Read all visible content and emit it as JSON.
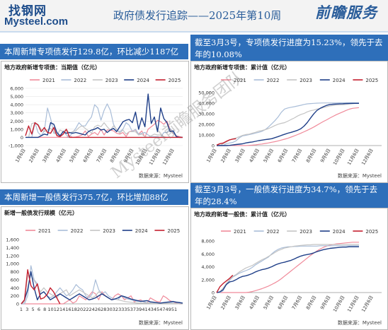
{
  "header": {
    "logo_cn": "找钢网",
    "logo_en": "Mysteel.com",
    "title": "政府债发行追踪——2025年第10周",
    "brand": "前瞻服务"
  },
  "bars": {
    "top_left": "本周新增专项债发行129.8亿，环比减少1187亿",
    "top_right": "截至3月3号，专项债发行进度为15.23%，领先于去年的10.08%",
    "bottom_left": "本周新增一般债发行375.7亿，环比增加88亿",
    "bottom_right": "截至3月3号，一般债发行进度为34.7%，领先于去年的28.4%"
  },
  "watermark": "Mysteel前瞻服务团队",
  "source": "数据来源：Mysteel",
  "colors": {
    "2021": "#f08a9a",
    "2022": "#a9bdd8",
    "2023": "#c4c4c4",
    "2024": "#1f3f88",
    "2025": "#c4202f",
    "bar": "#2e6fba"
  },
  "chart_data": [
    {
      "id": "special_weekly",
      "type": "line",
      "title": "地方政府新增专项债：当期值（亿元）",
      "x_ticks": [
        "1月6日",
        "2月6日",
        "3月6日",
        "4月6日",
        "5月6日",
        "6月6日",
        "7月6日",
        "8月6日",
        "9月6日",
        "10月6日",
        "11月6日",
        "12月6日"
      ],
      "ylim": [
        -1000,
        6000
      ],
      "yticks": [
        "-1,000",
        "0",
        "1,000",
        "2,000",
        "3,000",
        "4,000",
        "5,000",
        "6,000"
      ],
      "series": [
        {
          "name": "2021",
          "values": [
            0,
            0,
            0,
            0,
            0,
            0,
            0,
            0,
            0,
            0,
            0,
            0,
            0,
            0,
            200,
            0,
            50,
            150,
            300,
            800,
            100,
            400,
            600,
            300,
            1000,
            300,
            900,
            900,
            800,
            500,
            400,
            600,
            100,
            700,
            800,
            900,
            400,
            800,
            0,
            1000,
            1300,
            1600,
            2100,
            1900,
            1600,
            2000,
            1000,
            500,
            200,
            100,
            0
          ]
        },
        {
          "name": "2022",
          "values": [
            0,
            0,
            0,
            1800,
            600,
            200,
            800,
            3600,
            2300,
            500,
            400,
            100,
            800,
            300,
            100,
            600,
            1100,
            1800,
            1400,
            1400,
            2000,
            2500,
            4000,
            3600,
            2100,
            3300,
            4100,
            3300,
            1600,
            900,
            700,
            1000,
            1800,
            1500,
            700,
            1000,
            400,
            500,
            600,
            300,
            100,
            100,
            100,
            0,
            600,
            600,
            1100,
            600,
            100,
            0,
            0
          ]
        },
        {
          "name": "2023",
          "values": [
            0,
            0,
            1700,
            1800,
            1600,
            1000,
            700,
            900,
            1100,
            700,
            300,
            900,
            700,
            1000,
            500,
            700,
            800,
            1200,
            1400,
            1100,
            800,
            500,
            1300,
            1500,
            1300,
            1800,
            1300,
            900,
            1400,
            1000,
            500,
            900,
            400,
            700,
            700,
            700,
            300,
            400,
            100,
            0,
            200,
            400,
            300,
            300,
            100,
            0,
            0,
            0,
            0,
            0,
            0
          ]
        },
        {
          "name": "2024",
          "values": [
            0,
            0,
            0,
            0,
            0,
            200,
            400,
            300,
            1800,
            1600,
            600,
            200,
            700,
            500,
            600,
            500,
            600,
            500,
            400,
            300,
            700,
            900,
            1000,
            1200,
            900,
            1000,
            600,
            900,
            1100,
            700,
            1300,
            1900,
            2100,
            2200,
            1800,
            3100,
            1000,
            2400,
            1300,
            5300,
            1700,
            2500,
            700,
            3600,
            2300,
            1800,
            700,
            800,
            100,
            0,
            0
          ]
        },
        {
          "name": "2025",
          "values": [
            200,
            1400,
            400,
            1800,
            1500,
            700,
            1200,
            600,
            500,
            1200,
            200,
            100,
            400,
            1000,
            0,
            0,
            0,
            0,
            0,
            0,
            0,
            0,
            0,
            0,
            0,
            0,
            0,
            0,
            0,
            0,
            0,
            0,
            0,
            0,
            0,
            0,
            0,
            0,
            0,
            0,
            0,
            0,
            0,
            0,
            0,
            0,
            0,
            0,
            0,
            0,
            0
          ]
        }
      ]
    },
    {
      "id": "special_cum",
      "type": "line",
      "title": "地方政府新增专项债：累计值（亿元）",
      "x_ticks": [
        "1月6日",
        "2月6日",
        "3月6日",
        "4月6日",
        "5月6日",
        "6月6日",
        "7月6日",
        "8月6日",
        "9月6日",
        "10月6日",
        "11月6日",
        "12月6日"
      ],
      "ylim": [
        0,
        50000
      ],
      "yticks": [
        "0",
        "10,000",
        "20,000",
        "30,000",
        "40,000",
        "50,000"
      ],
      "series": [
        {
          "name": "2021",
          "values": [
            0,
            0,
            0,
            0,
            0,
            0,
            0,
            0,
            0,
            0,
            200,
            400,
            700,
            1100,
            1500,
            2000,
            2500,
            3100,
            3700,
            4400,
            5200,
            6000,
            6900,
            8000,
            9100,
            10300,
            11600,
            13000,
            14400,
            15900,
            17500,
            19200,
            21000,
            22700,
            24300,
            26000,
            27600,
            29100,
            30500,
            31800,
            33100,
            34300,
            35100,
            35500,
            35800
          ]
        },
        {
          "name": "2022",
          "values": [
            0,
            0,
            0,
            1800,
            2400,
            3000,
            4500,
            7300,
            9100,
            9700,
            10300,
            11000,
            11800,
            12500,
            13500,
            15000,
            17500,
            20500,
            23500,
            27000,
            31500,
            34500,
            35500,
            36100,
            36700,
            37300,
            38000,
            38800,
            39300,
            39600,
            39800,
            40000,
            40100,
            40200,
            40200,
            40200,
            40200,
            40200,
            40300,
            40300,
            40400,
            40400,
            40400,
            40400,
            40400
          ]
        },
        {
          "name": "2023",
          "values": [
            0,
            0,
            1700,
            3500,
            5200,
            6300,
            7200,
            8300,
            9600,
            10400,
            10800,
            11700,
            12500,
            13600,
            14200,
            15000,
            16000,
            17400,
            18900,
            20100,
            21000,
            21600,
            23000,
            24600,
            26000,
            27900,
            29300,
            30300,
            31800,
            32900,
            33500,
            34500,
            35000,
            35800,
            36600,
            37400,
            37800,
            38300,
            38500,
            38600,
            38800,
            39200,
            39500,
            39800,
            39900
          ]
        },
        {
          "name": "2024",
          "values": [
            0,
            0,
            0,
            0,
            200,
            600,
            1000,
            1300,
            1700,
            2500,
            3000,
            3400,
            4000,
            4700,
            5100,
            5600,
            6000,
            6500,
            7500,
            8500,
            9600,
            10600,
            11700,
            12500,
            13400,
            14400,
            15900,
            18300,
            21700,
            25900,
            29900,
            33100,
            35100,
            36700,
            37900,
            38700,
            39000,
            39200,
            39400,
            39500,
            39600,
            39700,
            39800,
            39800,
            39800
          ]
        },
        {
          "name": "2025",
          "values": [
            500,
            1800,
            2300,
            4000,
            5400,
            6100,
            6500
          ]
        }
      ]
    },
    {
      "id": "general_weekly",
      "type": "line",
      "title": "新增一般债发行规模（亿元）",
      "x_ticks": [
        "1",
        "3",
        "5",
        "6",
        "8",
        "10",
        "12",
        "14",
        "16",
        "18",
        "20",
        "22",
        "24",
        "26",
        "28",
        "30",
        "32",
        "33",
        "35",
        "37",
        "39",
        "41",
        "43",
        "45",
        "47",
        "49",
        "51"
      ],
      "ylim": [
        0,
        1600
      ],
      "yticks": [
        "0",
        "200",
        "400",
        "600",
        "800",
        "1,000",
        "1,200",
        "1,400",
        "1,600"
      ],
      "series": [
        {
          "name": "2021",
          "values": [
            0,
            0,
            0,
            0,
            0,
            0,
            0,
            0,
            0,
            0,
            0,
            0,
            0,
            0,
            50,
            100,
            20,
            60,
            200,
            150,
            100,
            200,
            300,
            250,
            100,
            300,
            200,
            150,
            100,
            200,
            250,
            200,
            100,
            150,
            200,
            50,
            80,
            100,
            50,
            20,
            150,
            100,
            60,
            50,
            200,
            150,
            80,
            50,
            20,
            0,
            0
          ]
        },
        {
          "name": "2022",
          "values": [
            0,
            0,
            200,
            950,
            600,
            500,
            250,
            300,
            200,
            150,
            200,
            300,
            400,
            300,
            200,
            250,
            350,
            480,
            400,
            350,
            200,
            150,
            250,
            600,
            350,
            250,
            300,
            200,
            150,
            120,
            100,
            200,
            150,
            120,
            100,
            80,
            60,
            80,
            50,
            30,
            20,
            20,
            20,
            20,
            20,
            20,
            30,
            40,
            50,
            40,
            20
          ]
        },
        {
          "name": "2023",
          "values": [
            0,
            50,
            700,
            720,
            580,
            450,
            300,
            400,
            300,
            250,
            200,
            150,
            250,
            300,
            350,
            200,
            250,
            300,
            350,
            300,
            250,
            200,
            150,
            200,
            300,
            250,
            200,
            150,
            100,
            120,
            100,
            80,
            60,
            50,
            40,
            30,
            20,
            20,
            20,
            20,
            20,
            10,
            10,
            10,
            20,
            20,
            10,
            10,
            10,
            0,
            0
          ]
        },
        {
          "name": "2024",
          "values": [
            0,
            100,
            350,
            800,
            400,
            100,
            250,
            300,
            200,
            100,
            150,
            200,
            250,
            200,
            150,
            100,
            150,
            200,
            250,
            200,
            150,
            100,
            120,
            150,
            200,
            250,
            200,
            150,
            100,
            120,
            150,
            200,
            180,
            150,
            120,
            100,
            80,
            60,
            70,
            80,
            50,
            40,
            30,
            20,
            30,
            40,
            50,
            60,
            40,
            30,
            20
          ]
        },
        {
          "name": "2025",
          "values": [
            0,
            100,
            850,
            450,
            350,
            500,
            120,
            150,
            230,
            400,
            300,
            150,
            0
          ]
        }
      ]
    },
    {
      "id": "general_cum",
      "type": "line",
      "title": "地方政府新增一般债：累计值（亿元）",
      "x_ticks": [
        "1月6日",
        "2月6日",
        "3月6日",
        "4月6日",
        "5月6日",
        "6月6日",
        "7月6日",
        "8月6日",
        "9月6日",
        "10月6日",
        "11月6日",
        "12月6日"
      ],
      "ylim": [
        0,
        8000
      ],
      "yticks": [
        "0",
        "2,000",
        "4,000",
        "6,000",
        "8,000"
      ],
      "series": [
        {
          "name": "2021",
          "values": [
            0,
            0,
            0,
            0,
            0,
            0,
            0,
            0,
            0,
            0,
            50,
            150,
            300,
            450,
            600,
            800,
            1000,
            1250,
            1500,
            1800,
            2150,
            2550,
            2950,
            3350,
            3750,
            4150,
            4550,
            4950,
            5350,
            5750,
            6100,
            6450,
            6750,
            7000,
            7200,
            7350,
            7450,
            7550,
            7600,
            7650,
            7700,
            7750,
            7800,
            7800,
            7800
          ]
        },
        {
          "name": "2022",
          "values": [
            0,
            0,
            300,
            1300,
            1900,
            2400,
            2700,
            3000,
            3200,
            3400,
            3600,
            3900,
            4300,
            4600,
            4900,
            5200,
            5500,
            6000,
            6400,
            6700,
            6900,
            7000,
            7100,
            7100,
            7150,
            7150,
            7200,
            7200,
            7200,
            7200,
            7200,
            7200,
            7250,
            7250,
            7250,
            7250,
            7250,
            7250,
            7250,
            7250,
            7250,
            7250,
            7250,
            7250,
            7250
          ]
        },
        {
          "name": "2023",
          "values": [
            0,
            100,
            700,
            1400,
            2000,
            2500,
            2800,
            3200,
            3500,
            3800,
            4000,
            4200,
            4500,
            4800,
            5100,
            5300,
            5600,
            5900,
            6200,
            6500,
            6700,
            6900,
            7000,
            7100,
            7200,
            7250,
            7300,
            7350,
            7400,
            7400,
            7450,
            7450,
            7450,
            7450,
            7450,
            7450,
            7450,
            7450,
            7450,
            7450,
            7450,
            7450,
            7450,
            7450,
            7450
          ]
        },
        {
          "name": "2024",
          "values": [
            0,
            100,
            450,
            1250,
            1650,
            1750,
            2000,
            2300,
            2500,
            2600,
            2750,
            2950,
            3200,
            3400,
            3550,
            3650,
            3800,
            4000,
            4250,
            4450,
            4600,
            4700,
            4850,
            5000,
            5200,
            5450,
            5650,
            5800,
            5900,
            6000,
            6150,
            6350,
            6500,
            6650,
            6750,
            6850,
            6900,
            6950,
            7000,
            7050,
            7050,
            7100,
            7100,
            7100,
            7100
          ]
        },
        {
          "name": "2025",
          "values": [
            0,
            900,
            1400,
            1800,
            2200,
            2700
          ]
        }
      ]
    }
  ]
}
